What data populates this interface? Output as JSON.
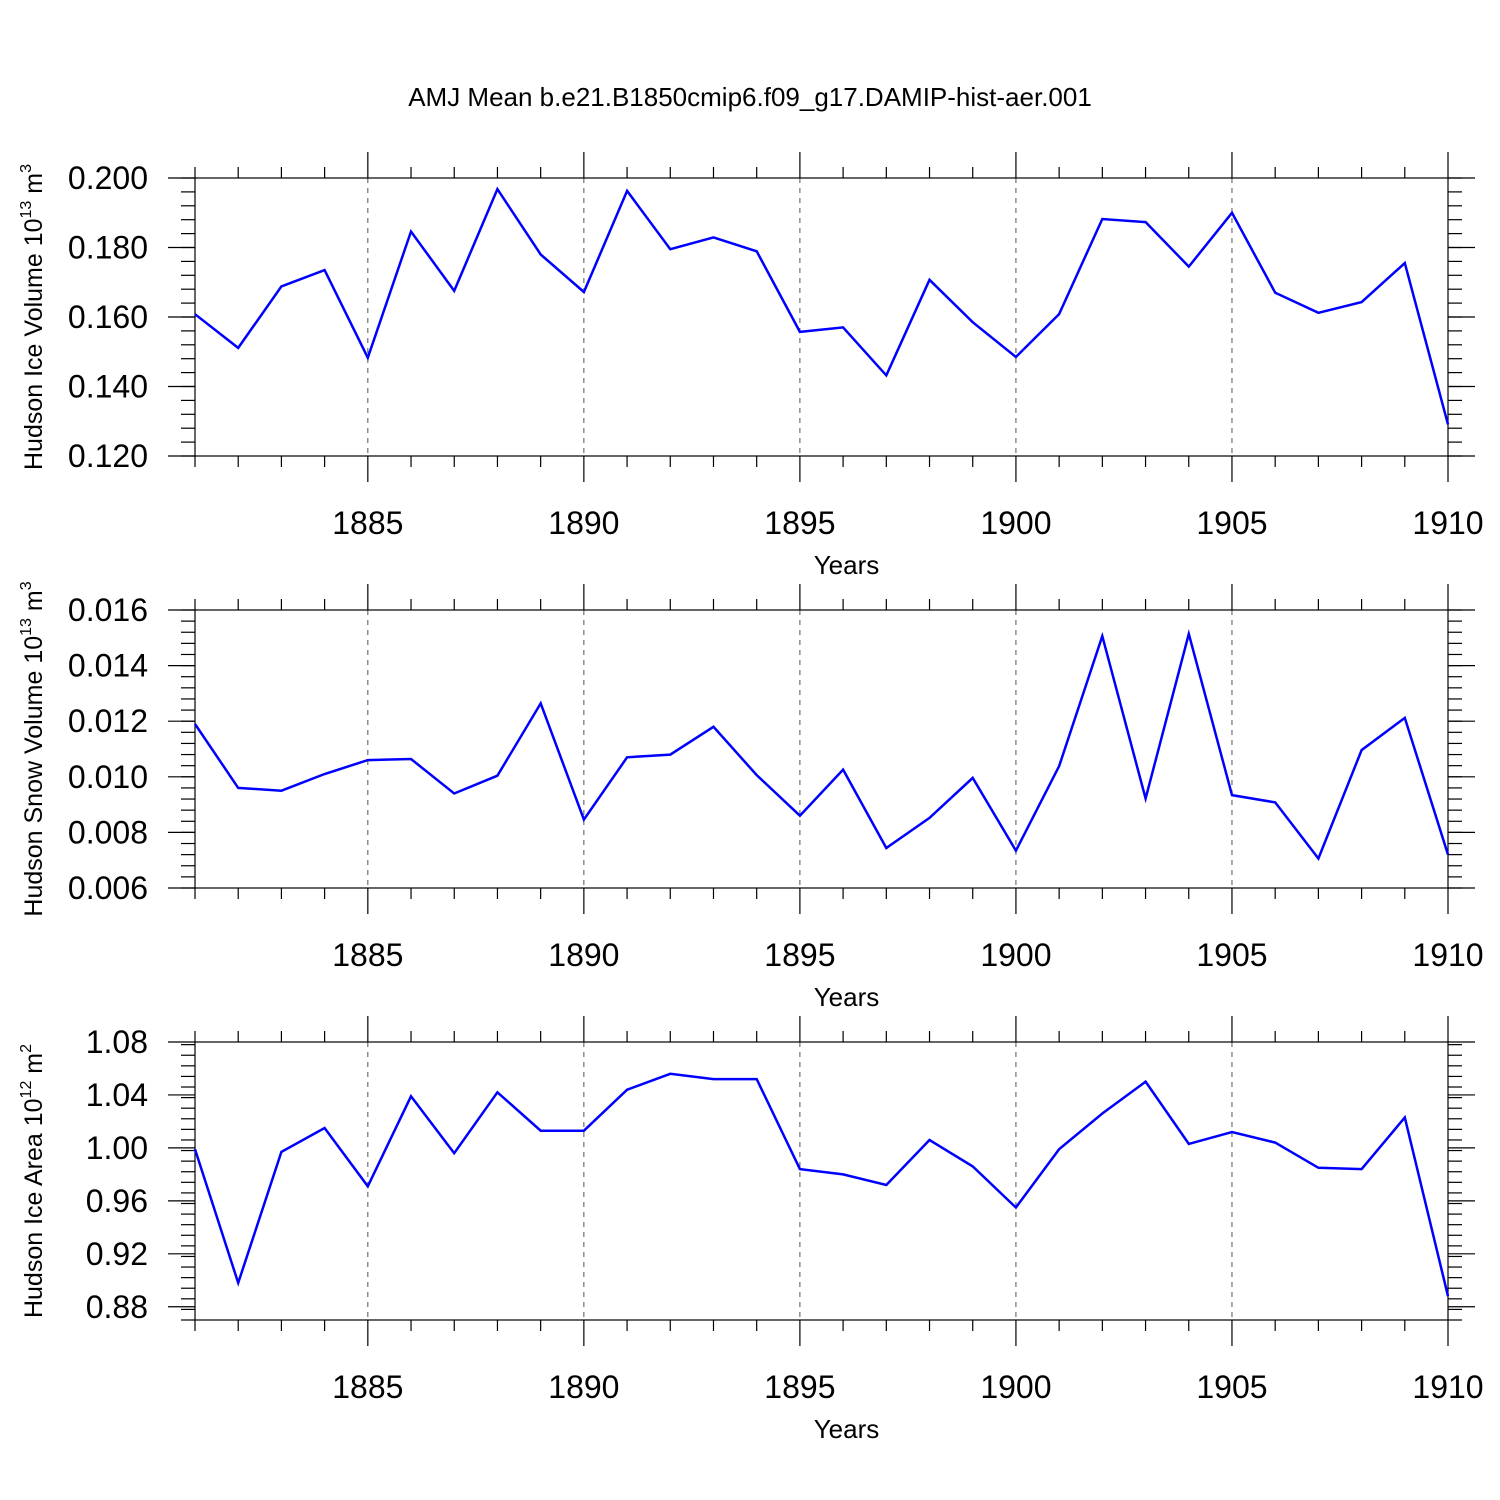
{
  "figure": {
    "title": "AMJ Mean b.e21.B1850cmip6.f09_g17.DAMIP-hist-aer.001",
    "series_color": "#0000ff"
  },
  "chart_data": [
    {
      "type": "line",
      "ylabel": "Hudson Ice Volume 10",
      "ylabel_sup": "13",
      "ylabel_unit": " m",
      "ylabel_unit_sup": "3",
      "xlabel": "Years",
      "xlim": [
        1881,
        1910
      ],
      "ylim": [
        0.12,
        0.2
      ],
      "yticks": [
        0.12,
        0.14,
        0.16,
        0.18,
        0.2
      ],
      "ytick_labels": [
        "0.120",
        "0.140",
        "0.160",
        "0.180",
        "0.200"
      ],
      "xticks": [
        1885,
        1890,
        1895,
        1900,
        1905,
        1910
      ],
      "xtick_labels": [
        "1885",
        "1890",
        "1895",
        "1900",
        "1905",
        "1910"
      ],
      "x": [
        1881,
        1882,
        1883,
        1884,
        1885,
        1886,
        1887,
        1888,
        1889,
        1890,
        1891,
        1892,
        1893,
        1894,
        1895,
        1896,
        1897,
        1898,
        1899,
        1900,
        1901,
        1902,
        1903,
        1904,
        1905,
        1906,
        1907,
        1908,
        1909,
        1910
      ],
      "values": [
        0.1608,
        0.1511,
        0.1688,
        0.1735,
        0.1483,
        0.1846,
        0.1675,
        0.1968,
        0.178,
        0.1672,
        0.1963,
        0.1795,
        0.1829,
        0.1789,
        0.1557,
        0.157,
        0.1432,
        0.1707,
        0.1585,
        0.1485,
        0.1608,
        0.1882,
        0.1873,
        0.1745,
        0.19,
        0.167,
        0.1612,
        0.1643,
        0.1755,
        0.1291
      ]
    },
    {
      "type": "line",
      "ylabel": "Hudson Snow Volume 10",
      "ylabel_sup": "13",
      "ylabel_unit": " m",
      "ylabel_unit_sup": "3",
      "xlabel": "Years",
      "xlim": [
        1881,
        1910
      ],
      "ylim": [
        0.006,
        0.016
      ],
      "yticks": [
        0.006,
        0.008,
        0.01,
        0.012,
        0.014,
        0.016
      ],
      "ytick_labels": [
        "0.006",
        "0.008",
        "0.010",
        "0.012",
        "0.014",
        "0.016"
      ],
      "xticks": [
        1885,
        1890,
        1895,
        1900,
        1905,
        1910
      ],
      "xtick_labels": [
        "1885",
        "1890",
        "1895",
        "1900",
        "1905",
        "1910"
      ],
      "x": [
        1881,
        1882,
        1883,
        1884,
        1885,
        1886,
        1887,
        1888,
        1889,
        1890,
        1891,
        1892,
        1893,
        1894,
        1895,
        1896,
        1897,
        1898,
        1899,
        1900,
        1901,
        1902,
        1903,
        1904,
        1905,
        1906,
        1907,
        1908,
        1909,
        1910
      ],
      "values": [
        0.0119,
        0.0096,
        0.0095,
        0.0101,
        0.0106,
        0.01064,
        0.0094,
        0.01004,
        0.01264,
        0.00846,
        0.0107,
        0.0108,
        0.0118,
        0.01006,
        0.0086,
        0.01026,
        0.00744,
        0.00852,
        0.00996,
        0.00734,
        0.01038,
        0.01506,
        0.00922,
        0.01514,
        0.00934,
        0.00908,
        0.00706,
        0.01096,
        0.01212,
        0.0072
      ]
    },
    {
      "type": "line",
      "ylabel": "Hudson Ice Area 10",
      "ylabel_sup": "12",
      "ylabel_unit": " m",
      "ylabel_unit_sup": "2",
      "xlabel": "Years",
      "xlim": [
        1881,
        1910
      ],
      "ylim": [
        0.87,
        1.08
      ],
      "yticks": [
        0.88,
        0.92,
        0.96,
        1.0,
        1.04,
        1.08
      ],
      "ytick_labels": [
        "0.88",
        "0.92",
        "0.96",
        "1.00",
        "1.04",
        "1.08"
      ],
      "xticks": [
        1885,
        1890,
        1895,
        1900,
        1905,
        1910
      ],
      "xtick_labels": [
        "1885",
        "1890",
        "1895",
        "1900",
        "1905",
        "1910"
      ],
      "x": [
        1881,
        1882,
        1883,
        1884,
        1885,
        1886,
        1887,
        1888,
        1889,
        1890,
        1891,
        1892,
        1893,
        1894,
        1895,
        1896,
        1897,
        1898,
        1899,
        1900,
        1901,
        1902,
        1903,
        1904,
        1905,
        1906,
        1907,
        1908,
        1909,
        1910
      ],
      "values": [
        0.999,
        0.898,
        0.997,
        1.015,
        0.971,
        1.039,
        0.996,
        1.042,
        1.013,
        1.013,
        1.044,
        1.056,
        1.052,
        1.052,
        0.984,
        0.98,
        0.972,
        1.006,
        0.986,
        0.955,
        0.999,
        1.026,
        1.05,
        1.003,
        1.012,
        1.004,
        0.985,
        0.984,
        1.023,
        0.888
      ]
    }
  ]
}
